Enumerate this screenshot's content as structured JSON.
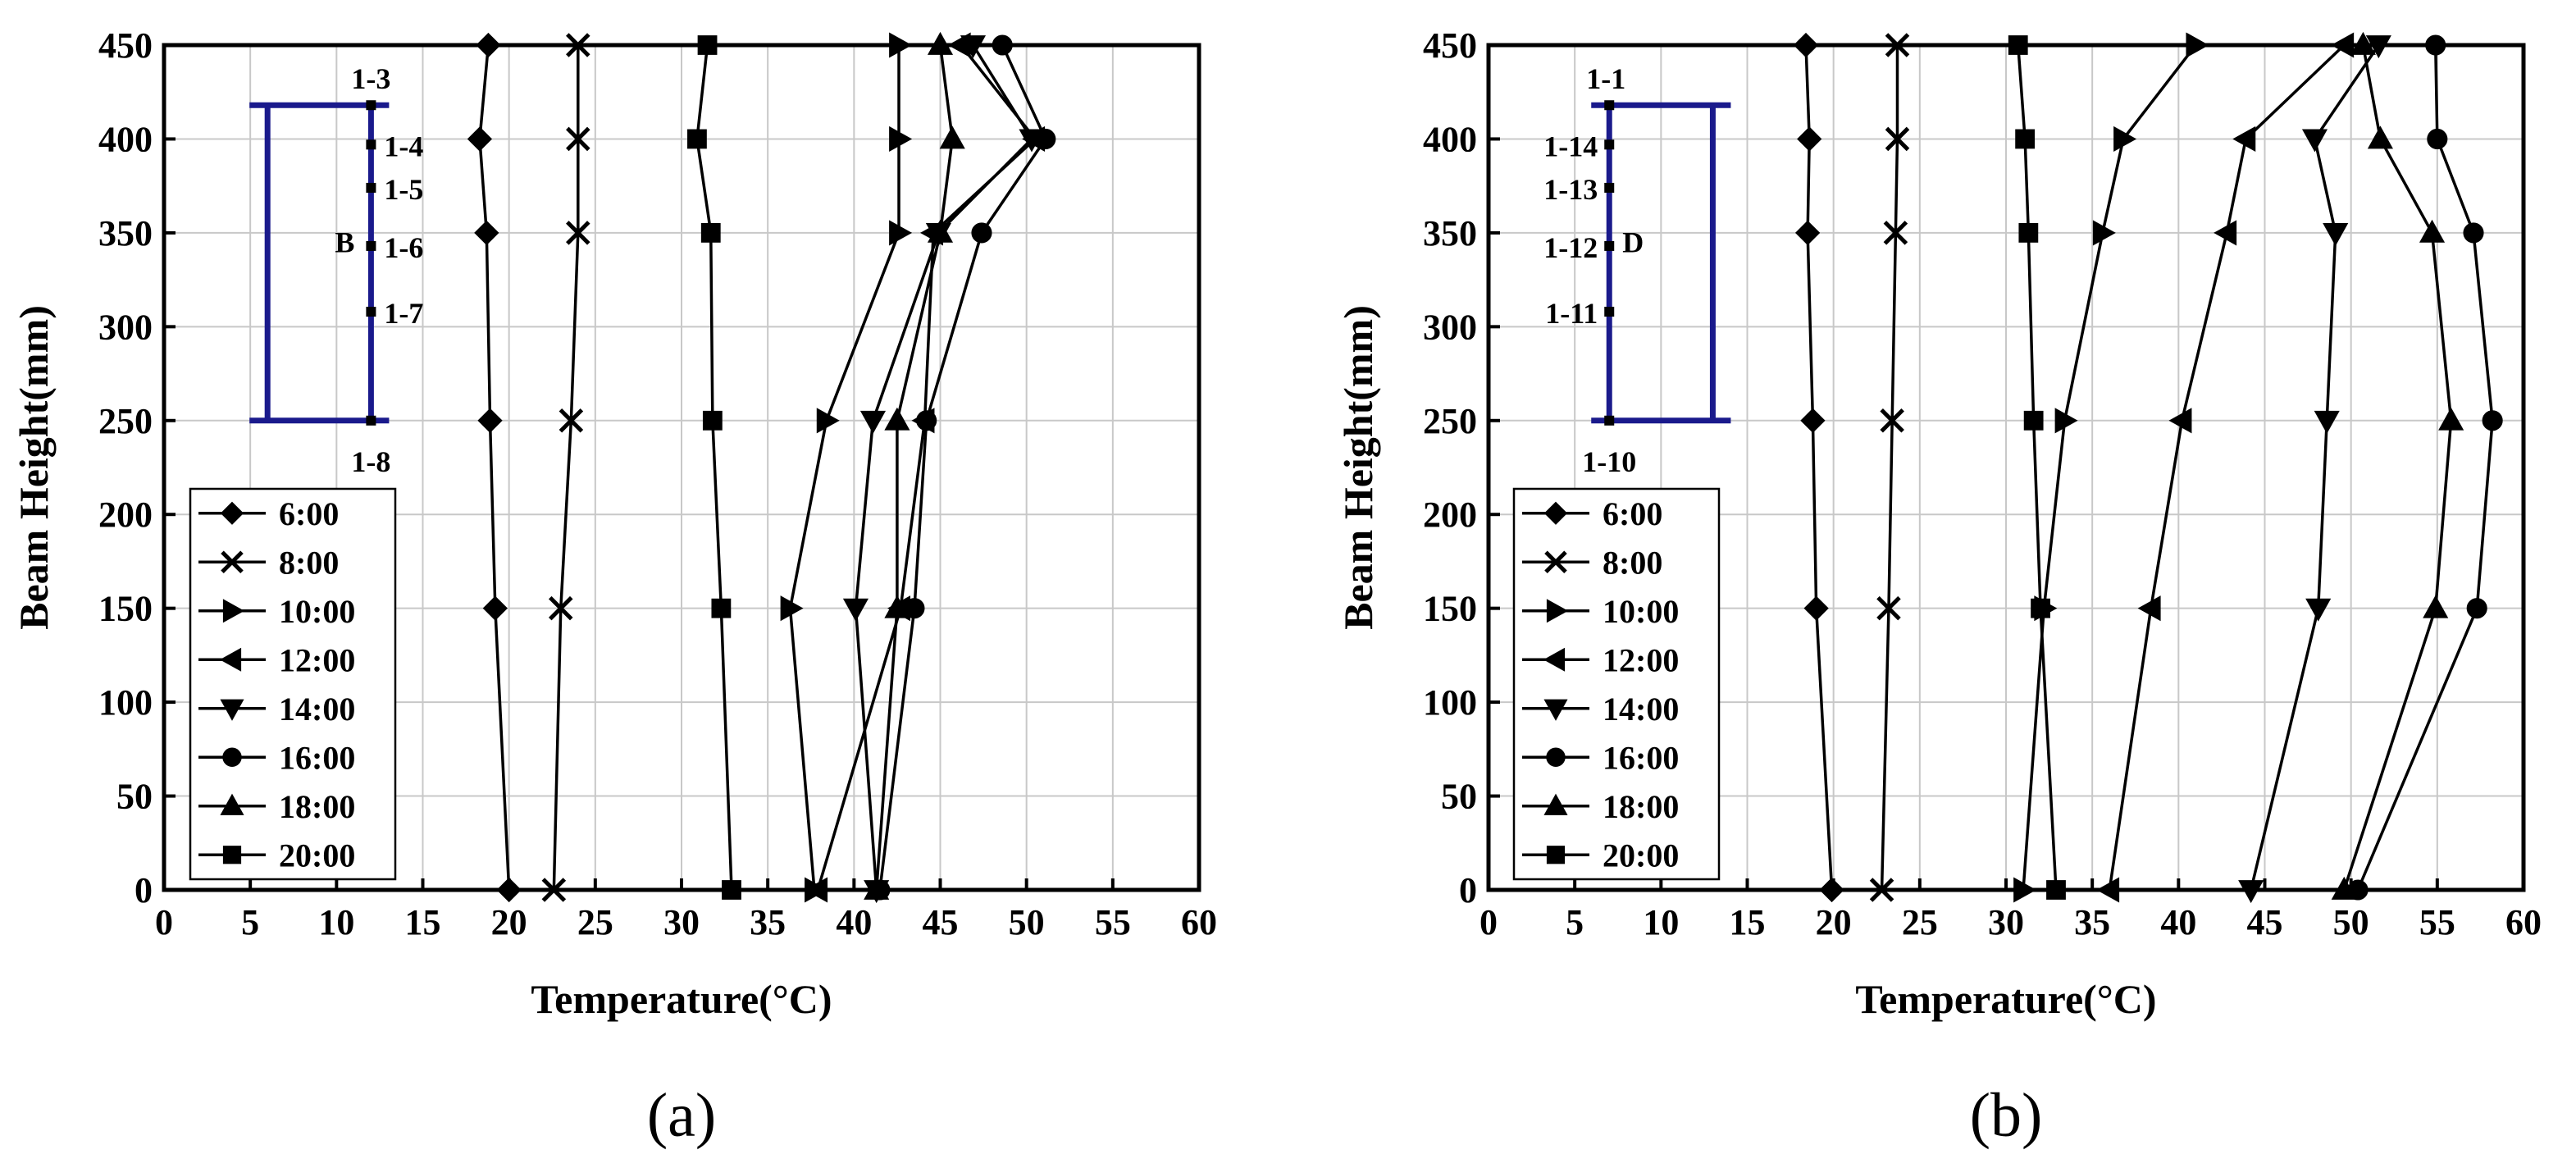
{
  "chart_data": [
    {
      "type": "line",
      "panel_label": "(a)",
      "xlabel": "Temperature(°C)",
      "ylabel": "Beam Height(mm)",
      "xlim": [
        0,
        60
      ],
      "ylim": [
        0,
        450
      ],
      "xticks": [
        0,
        5,
        10,
        15,
        20,
        25,
        30,
        35,
        40,
        45,
        50,
        55,
        60
      ],
      "yticks": [
        0,
        50,
        100,
        150,
        200,
        250,
        300,
        350,
        400,
        450
      ],
      "grid": true,
      "legend_position": "bottom-left",
      "y": [
        0,
        150,
        250,
        350,
        400,
        450
      ],
      "series": [
        {
          "name": "6:00",
          "marker": "diamond",
          "values": [
            20.0,
            19.2,
            18.9,
            18.7,
            18.3,
            18.8
          ]
        },
        {
          "name": "8:00",
          "marker": "x",
          "values": [
            22.6,
            23.0,
            23.6,
            24.0,
            24.0,
            24.0
          ]
        },
        {
          "name": "10:00",
          "marker": "triangle-right",
          "values": [
            37.7,
            36.3,
            38.4,
            42.6,
            42.6,
            42.6
          ]
        },
        {
          "name": "12:00",
          "marker": "triangle-left",
          "values": [
            37.9,
            42.7,
            44.1,
            44.6,
            50.5,
            46.2
          ]
        },
        {
          "name": "14:00",
          "marker": "triangle-down",
          "values": [
            41.3,
            40.1,
            41.1,
            44.9,
            50.3,
            46.9
          ]
        },
        {
          "name": "16:00",
          "marker": "circle",
          "values": [
            41.5,
            43.5,
            44.2,
            47.4,
            51.1,
            48.6
          ]
        },
        {
          "name": "18:00",
          "marker": "triangle-up",
          "values": [
            41.3,
            42.5,
            42.5,
            45.0,
            45.7,
            45.0
          ]
        },
        {
          "name": "20:00",
          "marker": "square",
          "values": [
            32.9,
            32.3,
            31.8,
            31.7,
            30.9,
            31.5
          ]
        }
      ],
      "inset": {
        "side_letter": "B",
        "points": [
          {
            "label": "1-3",
            "y": 418
          },
          {
            "label": "1-4",
            "y": 397
          },
          {
            "label": "1-5",
            "y": 374
          },
          {
            "label": "1-6",
            "y": 343
          },
          {
            "label": "1-7",
            "y": 308
          },
          {
            "label": "1-8",
            "y": 250
          }
        ]
      }
    },
    {
      "type": "line",
      "panel_label": "(b)",
      "xlabel": "Temperature(°C)",
      "ylabel": "Beam Height(mm)",
      "xlim": [
        0,
        60
      ],
      "ylim": [
        0,
        450
      ],
      "xticks": [
        0,
        5,
        10,
        15,
        20,
        25,
        30,
        35,
        40,
        45,
        50,
        55,
        60
      ],
      "yticks": [
        0,
        50,
        100,
        150,
        200,
        250,
        300,
        350,
        400,
        450
      ],
      "grid": true,
      "legend_position": "bottom-left",
      "y": [
        0,
        150,
        250,
        350,
        400,
        450
      ],
      "series": [
        {
          "name": "6:00",
          "marker": "diamond",
          "values": [
            19.9,
            19.0,
            18.8,
            18.5,
            18.6,
            18.4
          ]
        },
        {
          "name": "8:00",
          "marker": "x",
          "values": [
            22.8,
            23.2,
            23.4,
            23.6,
            23.7,
            23.7
          ]
        },
        {
          "name": "10:00",
          "marker": "triangle-right",
          "values": [
            31.0,
            32.2,
            33.4,
            35.6,
            36.8,
            41.0
          ]
        },
        {
          "name": "12:00",
          "marker": "triangle-left",
          "values": [
            36.0,
            38.4,
            40.2,
            42.8,
            43.9,
            49.6
          ]
        },
        {
          "name": "14:00",
          "marker": "triangle-down",
          "values": [
            44.2,
            48.1,
            48.6,
            49.1,
            47.9,
            51.6
          ]
        },
        {
          "name": "16:00",
          "marker": "circle",
          "values": [
            50.4,
            57.3,
            58.2,
            57.1,
            55.0,
            54.9
          ]
        },
        {
          "name": "18:00",
          "marker": "triangle-up",
          "values": [
            49.6,
            54.9,
            55.8,
            54.7,
            51.7,
            50.7
          ]
        },
        {
          "name": "20:00",
          "marker": "square",
          "values": [
            32.9,
            32.0,
            31.6,
            31.3,
            31.1,
            30.7
          ]
        }
      ],
      "inset": {
        "side_letter": "D",
        "points": [
          {
            "label": "1-1",
            "y": 418
          },
          {
            "label": "1-14",
            "y": 397
          },
          {
            "label": "1-13",
            "y": 374
          },
          {
            "label": "1-12",
            "y": 343
          },
          {
            "label": "1-11",
            "y": 308
          },
          {
            "label": "1-10",
            "y": 250
          }
        ]
      }
    }
  ],
  "colors": {
    "axis": "#000000",
    "grid": "#c8c8c8",
    "series_line": "#000000",
    "inset_frame": "#1a1a8c"
  }
}
